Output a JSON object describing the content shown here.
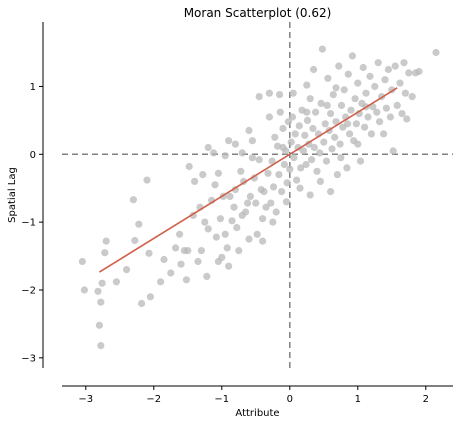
{
  "chart_data": {
    "type": "scatter",
    "title": "Moran Scatterplot (0.62)",
    "xlabel": "Attribute",
    "ylabel": "Spatial Lag",
    "xlim": [
      -3.35,
      2.4
    ],
    "ylim": [
      -3.15,
      1.95
    ],
    "xticks": [
      -3,
      -2,
      -1,
      0,
      1,
      2
    ],
    "yticks": [
      -3,
      -2,
      -1,
      0,
      1
    ],
    "grid": false,
    "legend": "none",
    "reference_lines": {
      "vertical_x": 0,
      "horizontal_y": 0,
      "style": "dashed",
      "color": "#808080"
    },
    "fit_line": {
      "slope": 0.62,
      "intercept": 0.0,
      "x_range": [
        -2.8,
        1.58
      ],
      "color": "#d0604a"
    },
    "point_color": "#b8b8b8",
    "points": [
      [
        -3.05,
        -1.58
      ],
      [
        -3.02,
        -2.0
      ],
      [
        -2.82,
        -2.02
      ],
      [
        -2.8,
        -2.52
      ],
      [
        -2.78,
        -2.18
      ],
      [
        -2.78,
        -2.82
      ],
      [
        -2.76,
        -1.9
      ],
      [
        -2.7,
        -1.28
      ],
      [
        -2.72,
        -1.45
      ],
      [
        -2.55,
        -1.88
      ],
      [
        -2.4,
        -1.7
      ],
      [
        -2.28,
        -1.27
      ],
      [
        -2.3,
        -0.67
      ],
      [
        -2.22,
        -1.03
      ],
      [
        -2.18,
        -2.2
      ],
      [
        -2.1,
        -0.38
      ],
      [
        -2.07,
        -1.46
      ],
      [
        -2.05,
        -2.1
      ],
      [
        -1.9,
        -1.88
      ],
      [
        -1.85,
        -1.55
      ],
      [
        -1.75,
        -1.75
      ],
      [
        -1.68,
        -1.38
      ],
      [
        -1.62,
        -1.18
      ],
      [
        -1.6,
        -1.62
      ],
      [
        -1.55,
        -1.42
      ],
      [
        -1.52,
        -1.85
      ],
      [
        -1.5,
        -1.42
      ],
      [
        -1.48,
        -0.18
      ],
      [
        -1.42,
        -0.9
      ],
      [
        -1.4,
        -0.4
      ],
      [
        -1.35,
        -1.58
      ],
      [
        -1.32,
        -0.78
      ],
      [
        -1.3,
        -1.42
      ],
      [
        -1.28,
        -0.3
      ],
      [
        -1.25,
        -1.0
      ],
      [
        -1.22,
        -1.8
      ],
      [
        -1.2,
        -1.1
      ],
      [
        -1.15,
        -0.68
      ],
      [
        -1.12,
        0.02
      ],
      [
        -1.1,
        -0.45
      ],
      [
        -1.08,
        -1.22
      ],
      [
        -1.05,
        -1.58
      ],
      [
        -1.02,
        -0.95
      ],
      [
        -1.0,
        -1.52
      ],
      [
        -0.98,
        -0.62
      ],
      [
        -0.95,
        -1.18
      ],
      [
        -0.92,
        -1.38
      ],
      [
        -0.9,
        -1.65
      ],
      [
        -0.88,
        -0.62
      ],
      [
        -0.85,
        -0.98
      ],
      [
        -0.82,
        -0.78
      ],
      [
        -0.8,
        -0.52
      ],
      [
        -0.78,
        -1.08
      ],
      [
        -0.75,
        -1.42
      ],
      [
        -0.72,
        -0.25
      ],
      [
        -0.7,
        -0.9
      ],
      [
        -0.68,
        -0.4
      ],
      [
        -0.65,
        -0.85
      ],
      [
        -0.62,
        -0.72
      ],
      [
        -0.6,
        -1.25
      ],
      [
        -0.58,
        -0.62
      ],
      [
        -0.55,
        0.2
      ],
      [
        -0.52,
        -0.35
      ],
      [
        -0.5,
        -0.72
      ],
      [
        -0.48,
        -1.18
      ],
      [
        -0.45,
        -0.08
      ],
      [
        -0.42,
        -0.52
      ],
      [
        -0.4,
        -0.95
      ],
      [
        -0.38,
        -0.55
      ],
      [
        -0.35,
        -0.78
      ],
      [
        -0.32,
        -0.28
      ],
      [
        -0.3,
        0.55
      ],
      [
        -0.28,
        -0.72
      ],
      [
        -0.26,
        -0.1
      ],
      [
        -0.24,
        -0.48
      ],
      [
        -0.22,
        0.25
      ],
      [
        -0.2,
        -0.85
      ],
      [
        -0.18,
        0.12
      ],
      [
        -0.16,
        -0.3
      ],
      [
        -0.14,
        0.62
      ],
      [
        -0.12,
        -0.55
      ],
      [
        -0.1,
        0.38
      ],
      [
        -0.08,
        -0.15
      ],
      [
        -0.06,
        0.05
      ],
      [
        -0.04,
        -0.42
      ],
      [
        -0.02,
        0.48
      ],
      [
        0.0,
        -0.22
      ],
      [
        0.02,
        0.18
      ],
      [
        0.04,
        0.55
      ],
      [
        0.06,
        -0.05
      ],
      [
        0.08,
        0.3
      ],
      [
        0.1,
        -0.38
      ],
      [
        0.12,
        0.1
      ],
      [
        0.14,
        0.42
      ],
      [
        0.16,
        -0.2
      ],
      [
        0.18,
        0.65
      ],
      [
        0.2,
        0.05
      ],
      [
        0.22,
        0.28
      ],
      [
        0.24,
        -0.15
      ],
      [
        0.26,
        0.5
      ],
      [
        0.28,
        0.15
      ],
      [
        0.3,
        0.82
      ],
      [
        0.32,
        -0.08
      ],
      [
        0.34,
        0.38
      ],
      [
        0.36,
        0.1
      ],
      [
        0.38,
        0.62
      ],
      [
        0.4,
        -0.25
      ],
      [
        0.42,
        0.3
      ],
      [
        0.44,
        0.02
      ],
      [
        0.46,
        0.75
      ],
      [
        0.48,
        1.55
      ],
      [
        0.5,
        0.18
      ],
      [
        0.52,
        0.45
      ],
      [
        0.54,
        -0.1
      ],
      [
        0.56,
        1.12
      ],
      [
        0.58,
        0.35
      ],
      [
        0.6,
        0.6
      ],
      [
        0.62,
        0.08
      ],
      [
        0.64,
        0.88
      ],
      [
        0.66,
        0.25
      ],
      [
        0.68,
        0.48
      ],
      [
        0.7,
        -0.3
      ],
      [
        0.72,
        1.3
      ],
      [
        0.74,
        0.15
      ],
      [
        0.76,
        0.72
      ],
      [
        0.78,
        0.4
      ],
      [
        0.8,
        0.95
      ],
      [
        0.82,
        0.55
      ],
      [
        0.84,
        -0.2
      ],
      [
        0.86,
        1.18
      ],
      [
        0.88,
        0.3
      ],
      [
        0.9,
        0.65
      ],
      [
        0.92,
        1.45
      ],
      [
        0.94,
        0.2
      ],
      [
        0.96,
        0.82
      ],
      [
        0.98,
        0.45
      ],
      [
        1.0,
        1.05
      ],
      [
        1.02,
        0.6
      ],
      [
        1.04,
        -0.1
      ],
      [
        1.06,
        0.75
      ],
      [
        1.08,
        1.28
      ],
      [
        1.1,
        0.4
      ],
      [
        1.12,
        0.9
      ],
      [
        1.15,
        0.55
      ],
      [
        1.18,
        1.15
      ],
      [
        1.2,
        0.3
      ],
      [
        1.22,
        0.7
      ],
      [
        1.25,
        1.0
      ],
      [
        1.28,
        0.62
      ],
      [
        1.3,
        1.35
      ],
      [
        1.32,
        0.48
      ],
      [
        1.35,
        0.85
      ],
      [
        1.38,
        0.3
      ],
      [
        1.4,
        1.1
      ],
      [
        1.42,
        0.68
      ],
      [
        1.45,
        1.25
      ],
      [
        1.48,
        0.55
      ],
      [
        1.5,
        0.95
      ],
      [
        1.52,
        0.05
      ],
      [
        1.55,
        1.3
      ],
      [
        1.58,
        0.72
      ],
      [
        1.62,
        1.05
      ],
      [
        1.65,
        0.6
      ],
      [
        1.68,
        1.35
      ],
      [
        1.7,
        0.9
      ],
      [
        1.72,
        0.52
      ],
      [
        1.75,
        1.2
      ],
      [
        1.8,
        0.85
      ],
      [
        1.85,
        1.2
      ],
      [
        1.9,
        1.22
      ],
      [
        2.15,
        1.5
      ],
      [
        -0.45,
        0.85
      ],
      [
        -0.3,
        0.9
      ],
      [
        -0.15,
        0.88
      ],
      [
        0.05,
        0.9
      ],
      [
        0.25,
        1.02
      ],
      [
        0.35,
        1.25
      ],
      [
        -0.6,
        0.35
      ],
      [
        -0.8,
        0.15
      ],
      [
        -1.2,
        0.1
      ],
      [
        -0.9,
        0.2
      ],
      [
        -0.7,
        0.02
      ],
      [
        -0.55,
        -0.05
      ],
      [
        0.6,
        -0.55
      ],
      [
        0.75,
        -0.05
      ],
      [
        1.0,
        0.15
      ],
      [
        0.45,
        -0.4
      ],
      [
        0.3,
        -0.6
      ],
      [
        0.15,
        -0.5
      ],
      [
        -0.05,
        -0.7
      ],
      [
        -0.25,
        -1.0
      ],
      [
        -0.4,
        -1.28
      ],
      [
        -1.05,
        -0.28
      ],
      [
        -0.95,
        -0.02
      ],
      [
        0.85,
        0.45
      ],
      [
        0.55,
        0.72
      ],
      [
        0.25,
        0.62
      ],
      [
        -0.1,
        0.1
      ],
      [
        0.68,
        0.98
      ],
      [
        1.12,
        0.7
      ]
    ]
  }
}
